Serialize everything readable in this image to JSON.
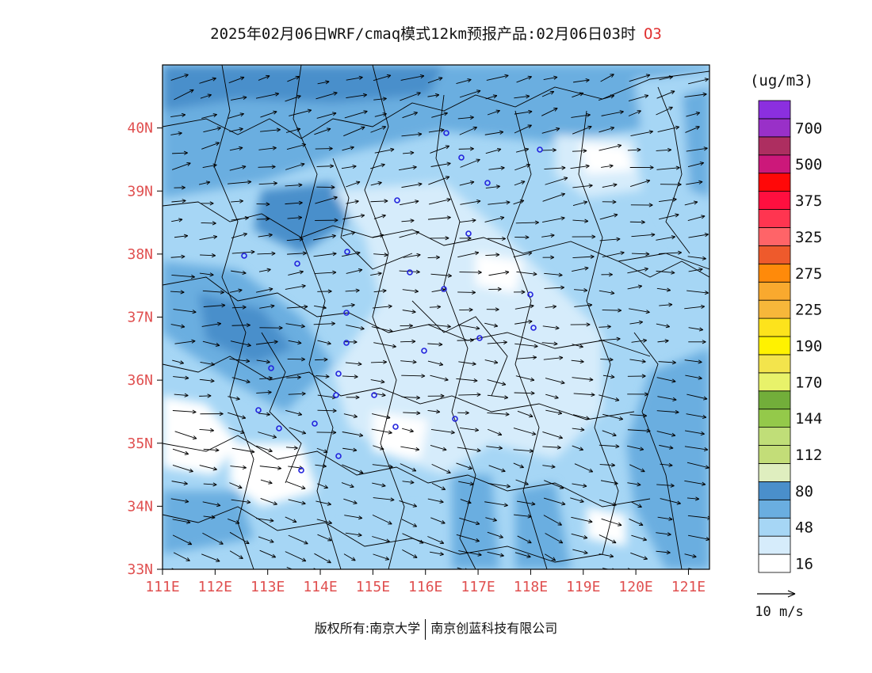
{
  "title": {
    "main": "2025年02月06日WRF/cmaq模式12km预报产品:02月06日03时",
    "pollutant": "O3"
  },
  "map": {
    "lat_labels": [
      "40N",
      "39N",
      "38N",
      "37N",
      "36N",
      "35N",
      "34N",
      "33N"
    ],
    "lon_labels": [
      "111E",
      "112E",
      "113E",
      "114E",
      "115E",
      "116E",
      "117E",
      "118E",
      "119E",
      "120E",
      "121E"
    ],
    "lat_range": [
      33,
      41
    ],
    "lon_range": [
      111,
      121.4
    ],
    "axis_label_color": "#e05050",
    "station_marker_color": "#2222dd"
  },
  "colorbar": {
    "unit_label": "(ug/m3)",
    "levels": [
      {
        "color": "#ffffff",
        "label": "16"
      },
      {
        "color": "#d6ecfb",
        "label": ""
      },
      {
        "color": "#a6d6f5",
        "label": "48"
      },
      {
        "color": "#6aaee0",
        "label": ""
      },
      {
        "color": "#4a8fcb",
        "label": "80"
      },
      {
        "color": "#dfeebf",
        "label": ""
      },
      {
        "color": "#c3dd78",
        "label": "112"
      },
      {
        "color": "#c0de78",
        "label": ""
      },
      {
        "color": "#94c94a",
        "label": "144"
      },
      {
        "color": "#72ae3a",
        "label": ""
      },
      {
        "color": "#e8f26a",
        "label": "170"
      },
      {
        "color": "#f3e44c",
        "label": ""
      },
      {
        "color": "#fff200",
        "label": "190"
      },
      {
        "color": "#fde31c",
        "label": ""
      },
      {
        "color": "#f7b73a",
        "label": "225"
      },
      {
        "color": "#f9a92e",
        "label": ""
      },
      {
        "color": "#ff8a0a",
        "label": "275"
      },
      {
        "color": "#ee5a2c",
        "label": ""
      },
      {
        "color": "#ff6468",
        "label": "325"
      },
      {
        "color": "#ff3550",
        "label": ""
      },
      {
        "color": "#ff0f3f",
        "label": "375"
      },
      {
        "color": "#ff0808",
        "label": ""
      },
      {
        "color": "#cc187a",
        "label": "500"
      },
      {
        "color": "#ad2e60",
        "label": ""
      },
      {
        "color": "#9930c8",
        "label": "700"
      },
      {
        "color": "#8b2fdf",
        "label": ""
      }
    ]
  },
  "wind_legend": {
    "label": "10 m/s"
  },
  "footer": {
    "left": "版权所有:南京大学",
    "right": "南京创蓝科技有限公司"
  }
}
